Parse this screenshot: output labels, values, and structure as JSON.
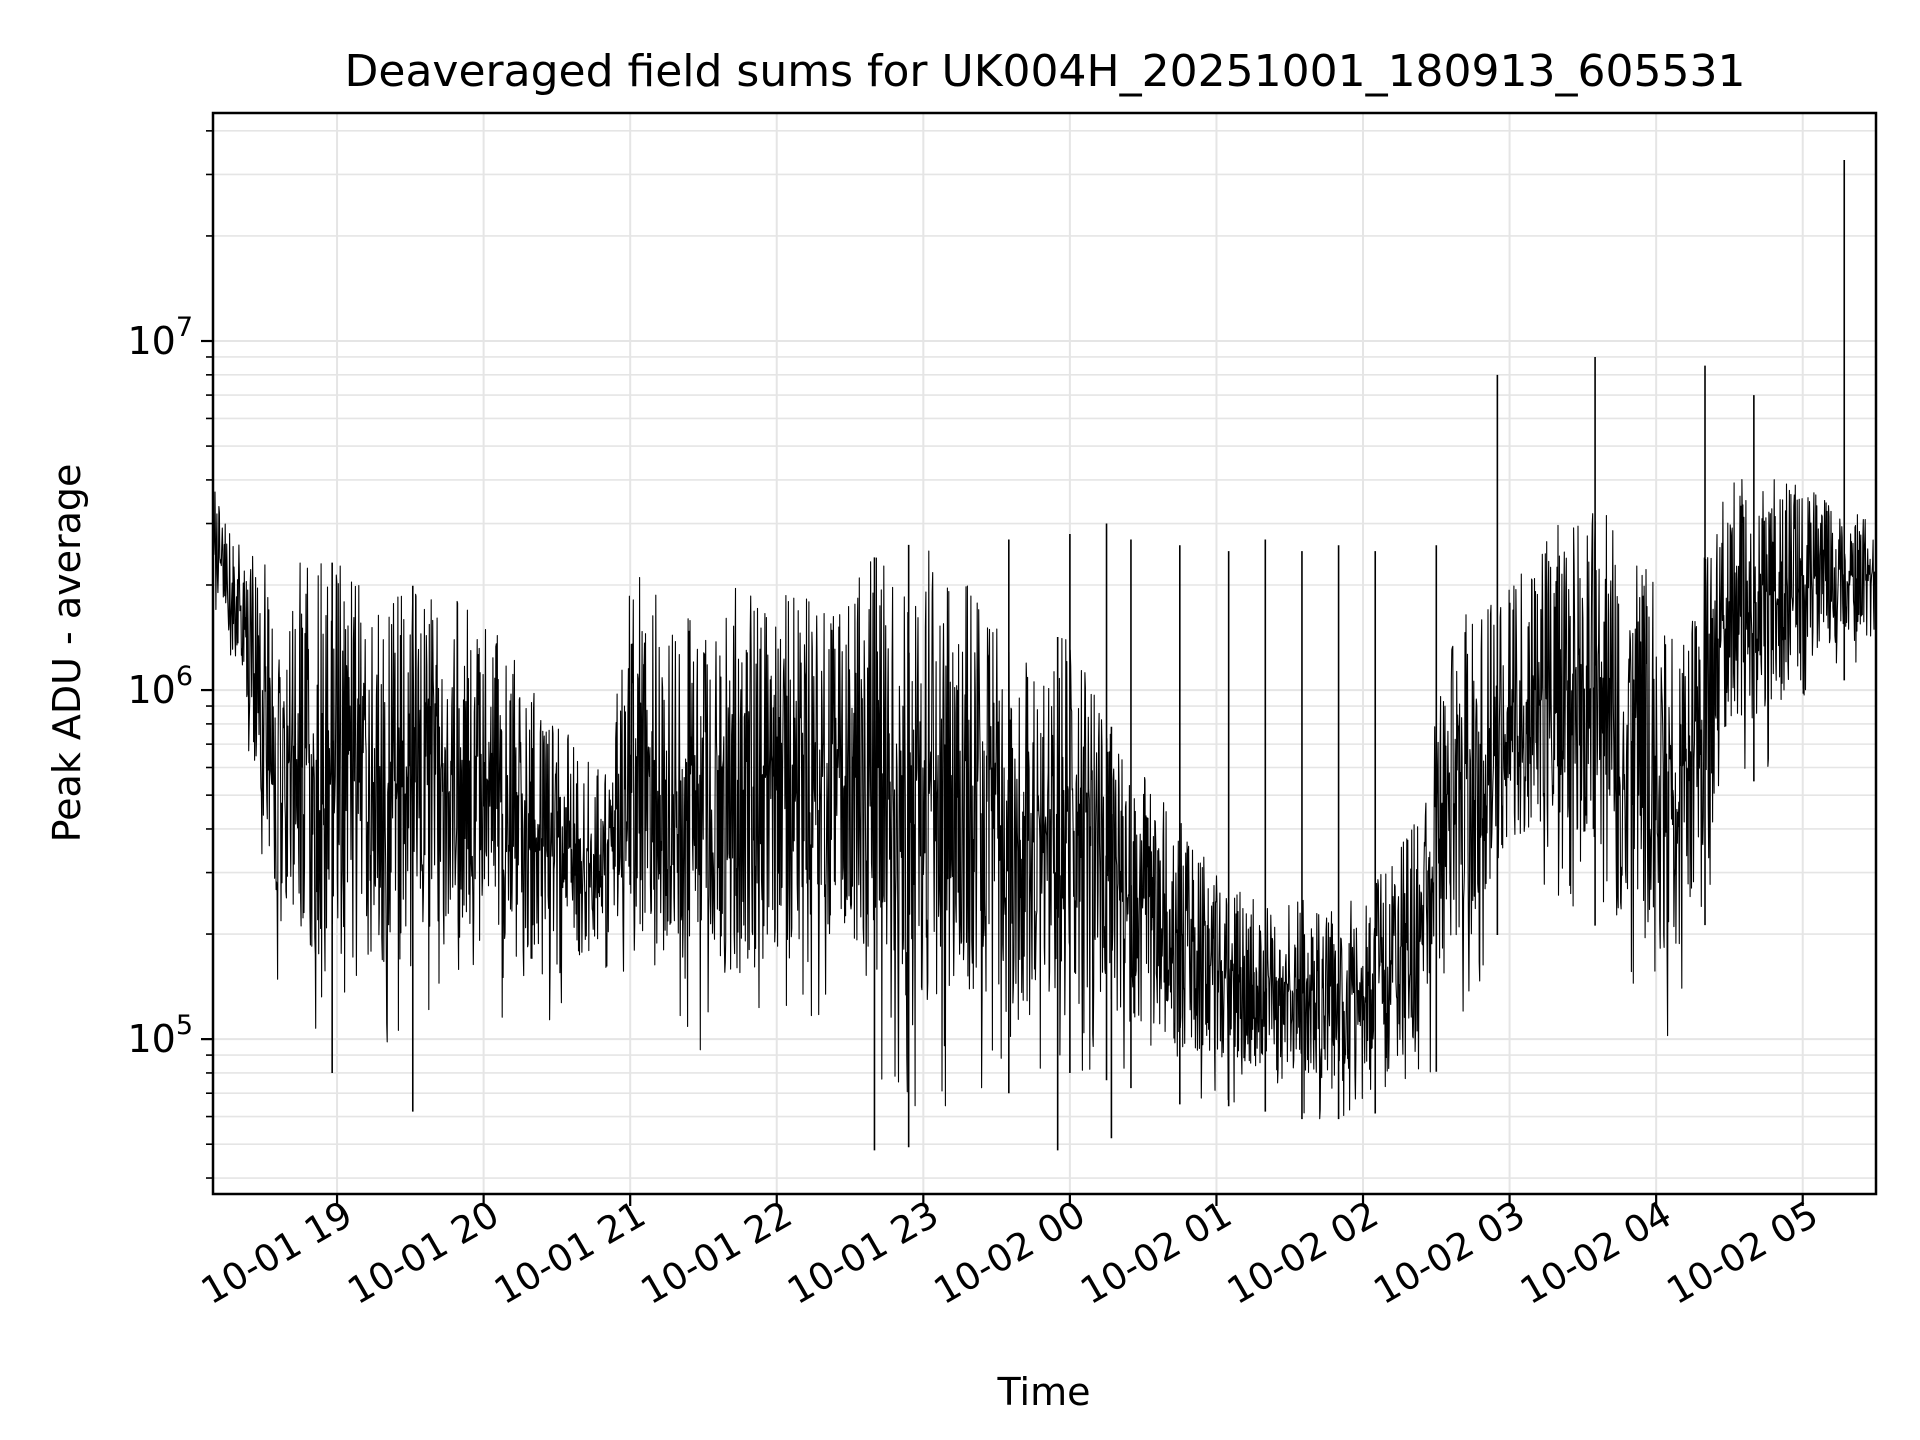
{
  "chart_data": {
    "type": "line",
    "title": "Deaveraged field sums for UK004H_20251001_180913_605531",
    "xlabel": "Time",
    "ylabel": "Peak ADU - average",
    "x_scale": "time",
    "y_scale": "log",
    "xlim": [
      "2025-10-01T18:09:13",
      "2025-10-02T05:30:00"
    ],
    "ylim": [
      36000,
      45000000
    ],
    "grid": true,
    "line_color": "#000000",
    "grid_color": "#e5e5e5",
    "x_ticks": [
      {
        "value": "2025-10-01T19:00:00",
        "label": "10-01 19"
      },
      {
        "value": "2025-10-01T20:00:00",
        "label": "10-01 20"
      },
      {
        "value": "2025-10-01T21:00:00",
        "label": "10-01 21"
      },
      {
        "value": "2025-10-01T22:00:00",
        "label": "10-01 22"
      },
      {
        "value": "2025-10-01T23:00:00",
        "label": "10-01 23"
      },
      {
        "value": "2025-10-02T00:00:00",
        "label": "10-02 00"
      },
      {
        "value": "2025-10-02T01:00:00",
        "label": "10-02 01"
      },
      {
        "value": "2025-10-02T02:00:00",
        "label": "10-02 02"
      },
      {
        "value": "2025-10-02T03:00:00",
        "label": "10-02 03"
      },
      {
        "value": "2025-10-02T04:00:00",
        "label": "10-02 04"
      },
      {
        "value": "2025-10-02T05:00:00",
        "label": "10-02 05"
      }
    ],
    "y_ticks": [
      {
        "value": 100000,
        "base": "10",
        "exp": "5"
      },
      {
        "value": 1000000,
        "base": "10",
        "exp": "6"
      },
      {
        "value": 10000000,
        "base": "10",
        "exp": "7"
      }
    ],
    "series": [
      {
        "envelope": [
          {
            "t": "2025-10-01T18:09:13",
            "high": 3800000,
            "low": 1800000
          },
          {
            "t": "2025-10-01T18:20:00",
            "high": 2600000,
            "low": 900000
          },
          {
            "t": "2025-10-01T18:35:00",
            "high": 2200000,
            "low": 150000
          },
          {
            "t": "2025-10-01T18:50:00",
            "high": 2400000,
            "low": 85000
          },
          {
            "t": "2025-10-01T19:10:00",
            "high": 2200000,
            "low": 90000
          },
          {
            "t": "2025-10-01T19:30:00",
            "high": 2000000,
            "low": 75000
          },
          {
            "t": "2025-10-01T19:50:00",
            "high": 1800000,
            "low": 120000
          },
          {
            "t": "2025-10-01T20:00:00",
            "high": 1600000,
            "low": 120000
          },
          {
            "t": "2025-10-01T20:15:00",
            "high": 1200000,
            "low": 110000
          },
          {
            "t": "2025-10-01T20:30:00",
            "high": 800000,
            "low": 100000
          },
          {
            "t": "2025-10-01T20:50:00",
            "high": 600000,
            "low": 150000
          },
          {
            "t": "2025-10-01T21:00:00",
            "high": 2200000,
            "low": 120000
          },
          {
            "t": "2025-10-01T21:20:00",
            "high": 1900000,
            "low": 90000
          },
          {
            "t": "2025-10-01T21:40:00",
            "high": 2000000,
            "low": 80000
          },
          {
            "t": "2025-10-01T22:00:00",
            "high": 1900000,
            "low": 80000
          },
          {
            "t": "2025-10-01T22:20:00",
            "high": 1800000,
            "low": 120000
          },
          {
            "t": "2025-10-01T22:40:00",
            "high": 2400000,
            "low": 65000
          },
          {
            "t": "2025-10-01T23:00:00",
            "high": 2700000,
            "low": 60000
          },
          {
            "t": "2025-10-01T23:20:00",
            "high": 2000000,
            "low": 70000
          },
          {
            "t": "2025-10-01T23:40:00",
            "high": 1200000,
            "low": 70000
          },
          {
            "t": "2025-10-02T00:00:00",
            "high": 1500000,
            "low": 80000
          },
          {
            "t": "2025-10-02T00:20:00",
            "high": 700000,
            "low": 75000
          },
          {
            "t": "2025-10-02T00:40:00",
            "high": 500000,
            "low": 65000
          },
          {
            "t": "2025-10-02T01:00:00",
            "high": 300000,
            "low": 65000
          },
          {
            "t": "2025-10-02T01:20:00",
            "high": 250000,
            "low": 62000
          },
          {
            "t": "2025-10-02T01:40:00",
            "high": 250000,
            "low": 58000
          },
          {
            "t": "2025-10-02T02:00:00",
            "high": 250000,
            "low": 60000
          },
          {
            "t": "2025-10-02T02:20:00",
            "high": 400000,
            "low": 65000
          },
          {
            "t": "2025-10-02T02:40:00",
            "high": 1800000,
            "low": 100000
          },
          {
            "t": "2025-10-02T03:00:00",
            "high": 2000000,
            "low": 250000
          },
          {
            "t": "2025-10-02T03:20:00",
            "high": 3000000,
            "low": 250000
          },
          {
            "t": "2025-10-02T03:40:00",
            "high": 3500000,
            "low": 200000
          },
          {
            "t": "2025-10-02T04:00:00",
            "high": 2000000,
            "low": 100000
          },
          {
            "t": "2025-10-02T04:10:00",
            "high": 1500000,
            "low": 90000
          },
          {
            "t": "2025-10-02T04:30:00",
            "high": 4000000,
            "low": 500000
          },
          {
            "t": "2025-10-02T04:50:00",
            "high": 4200000,
            "low": 600000
          },
          {
            "t": "2025-10-02T05:10:00",
            "high": 3500000,
            "low": 1000000
          },
          {
            "t": "2025-10-02T05:30:00",
            "high": 3000000,
            "low": 1200000
          }
        ],
        "spikes": [
          {
            "t": "2025-10-01T23:35:00",
            "value": 2700000
          },
          {
            "t": "2025-10-02T00:00:00",
            "value": 2800000
          },
          {
            "t": "2025-10-02T00:15:00",
            "value": 3000000
          },
          {
            "t": "2025-10-02T00:25:00",
            "value": 2700000
          },
          {
            "t": "2025-10-02T00:45:00",
            "value": 2600000
          },
          {
            "t": "2025-10-02T01:05:00",
            "value": 2500000
          },
          {
            "t": "2025-10-02T01:20:00",
            "value": 2700000
          },
          {
            "t": "2025-10-02T01:35:00",
            "value": 2500000
          },
          {
            "t": "2025-10-02T01:50:00",
            "value": 2600000
          },
          {
            "t": "2025-10-02T02:05:00",
            "value": 2500000
          },
          {
            "t": "2025-10-02T02:30:00",
            "value": 2600000
          },
          {
            "t": "2025-10-02T02:55:00",
            "value": 8000000
          },
          {
            "t": "2025-10-02T03:35:00",
            "value": 9000000
          },
          {
            "t": "2025-10-02T04:20:00",
            "value": 8500000
          },
          {
            "t": "2025-10-02T04:40:00",
            "value": 7000000
          },
          {
            "t": "2025-10-02T05:17:00",
            "value": 33000000
          }
        ],
        "dips": [
          {
            "t": "2025-10-01T18:58:00",
            "value": 80000
          },
          {
            "t": "2025-10-01T19:31:00",
            "value": 62000
          },
          {
            "t": "2025-10-01T22:40:00",
            "value": 48000
          },
          {
            "t": "2025-10-01T22:54:00",
            "value": 49000
          },
          {
            "t": "2025-10-01T23:55:00",
            "value": 48000
          },
          {
            "t": "2025-10-02T00:17:00",
            "value": 52000
          }
        ]
      }
    ]
  }
}
